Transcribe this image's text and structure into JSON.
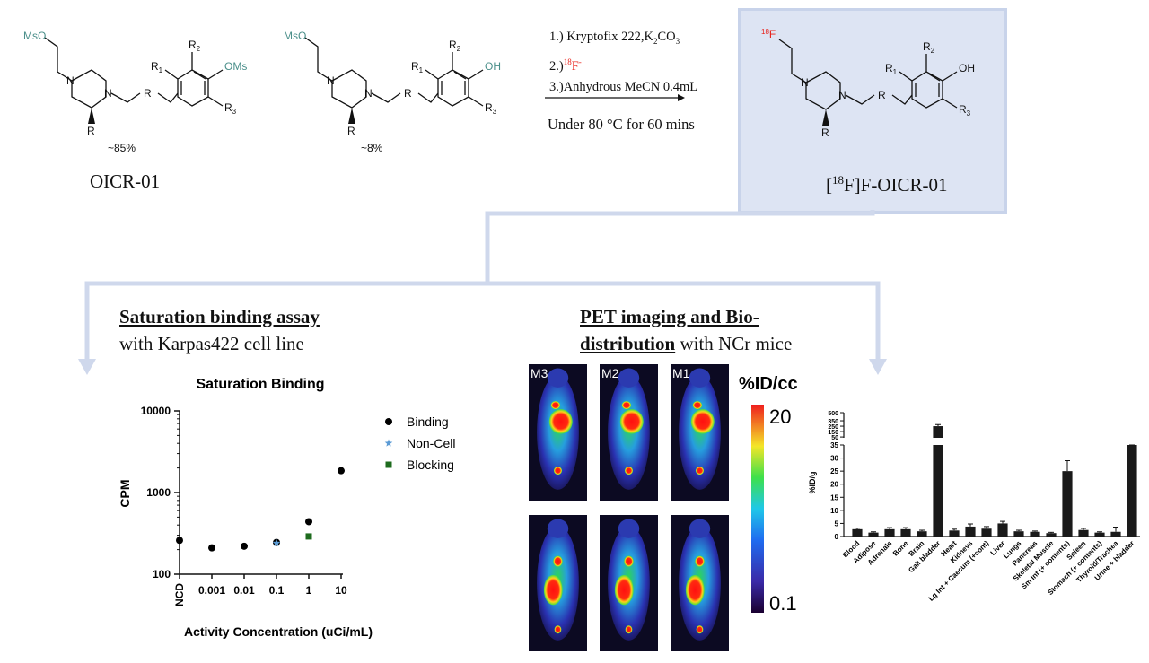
{
  "colors": {
    "highlight_box": "#dde4f3",
    "highlight_border": "#c8d3ea",
    "connector": "#cfd8ec",
    "mesyl_teal": "#4a8f8a",
    "fluorine_red": "#e8211a",
    "binding": "#000000",
    "noncell": "#5b9bd5",
    "blocking": "#1e6b1e"
  },
  "chemistry": {
    "precursor": {
      "ms_group": "MsO",
      "oms_group": "OMs",
      "r1": "R",
      "r1_sub": "1",
      "r2": "R",
      "r2_sub": "2",
      "r3": "R",
      "r3_sub": "3",
      "r_linker": "R",
      "r_ring": "R",
      "n1": "N",
      "n2": "N",
      "yield": "~85%",
      "name": "OICR-01"
    },
    "byproduct": {
      "ms_group": "MsO",
      "oh_group": "OH",
      "r1": "R",
      "r1_sub": "1",
      "r2": "R",
      "r2_sub": "2",
      "r3": "R",
      "r3_sub": "3",
      "r_linker": "R",
      "r_ring": "R",
      "n1": "N",
      "n2": "N",
      "yield": "~8%"
    },
    "conditions": {
      "step1_prefix": "1.) Kryptofix 222,K",
      "step1_sub1": "2",
      "step1_mid": "CO",
      "step1_sub2": "3",
      "step2_prefix": "2.)",
      "step2_mass": "18",
      "step2_elem": "F",
      "step2_charge": "-",
      "step3": "3.)Anhydrous MeCN 0.4mL",
      "temp": "Under 80 °C for 60 mins"
    },
    "product": {
      "mass": "18",
      "f_label": "F",
      "oh_group": "OH",
      "r1": "R",
      "r1_sub": "1",
      "r2": "R",
      "r2_sub": "2",
      "r3": "R",
      "r3_sub": "3",
      "r_linker": "R",
      "r_ring": "R",
      "n1": "N",
      "n2": "N",
      "name_open": "[",
      "name_mass": "18",
      "name_rest": "F]F-OICR-01"
    }
  },
  "saturation": {
    "heading_underlined": "Saturation binding assay",
    "heading_rest": "with Karpas422 cell line"
  },
  "pet": {
    "heading_line1": "PET imaging and Bio-",
    "heading_line2_underlined": "distribution",
    "heading_line2_rest": " with NCr mice",
    "mouse_labels": [
      "M3",
      "M2",
      "M1"
    ],
    "colorbar_title": "%ID/cc",
    "colorbar_max": "20",
    "colorbar_min": "0.1"
  },
  "chart_data": [
    {
      "type": "scatter",
      "title": "Saturation Binding",
      "xlabel": "Activity Concentration (uCi/mL)",
      "ylabel": "CPM",
      "x_tick_labels": [
        "NCD",
        "0.001",
        "0.01",
        "0.1",
        "1",
        "10"
      ],
      "y_tick_labels": [
        "10000",
        "1000",
        "100"
      ],
      "yscale": "log",
      "ylim": [
        100,
        10000
      ],
      "legend_position": "right",
      "series": [
        {
          "name": "Binding",
          "marker": "circle",
          "color": "#000000",
          "points": [
            {
              "x": "NCD",
              "y": 260
            },
            {
              "x": "0.001",
              "y": 210
            },
            {
              "x": "0.01",
              "y": 220
            },
            {
              "x": "0.1",
              "y": 245
            },
            {
              "x": "1",
              "y": 440
            },
            {
              "x": "10",
              "y": 1850
            }
          ]
        },
        {
          "name": "Non-Cell",
          "marker": "star",
          "color": "#5b9bd5",
          "points": [
            {
              "x": "0.1",
              "y": 240
            }
          ]
        },
        {
          "name": "Blocking",
          "marker": "square",
          "color": "#1e6b1e",
          "points": [
            {
              "x": "1",
              "y": 290
            }
          ]
        }
      ]
    },
    {
      "type": "bar",
      "title": "",
      "ylabel": "%ID/g",
      "y_tick_labels_lower": [
        "0",
        "5",
        "10",
        "15",
        "20",
        "25",
        "30",
        "35"
      ],
      "y_tick_labels_upper": [
        "50",
        "150",
        "250",
        "350",
        "500"
      ],
      "yscale": "broken",
      "ylim_lower": [
        0,
        35
      ],
      "ylim_upper": [
        35,
        500
      ],
      "categories": [
        "Blood",
        "Adipose",
        "Adrenals",
        "Bone",
        "Brain",
        "Gall bladder",
        "Heart",
        "Kidneys",
        "Lg Int + Caecum (+cont)",
        "Liver",
        "Lungs",
        "Pancreas",
        "Skeletal Muscle",
        "Sm Int (+ contents)",
        "Spleen",
        "Stomach (+ contents)",
        "Thyroid/Trachea",
        "Urine + bladder"
      ],
      "values": [
        2.8,
        1.5,
        2.8,
        2.8,
        2.0,
        250,
        2.3,
        3.8,
        3.0,
        5.0,
        2.0,
        1.8,
        1.3,
        25,
        2.5,
        1.5,
        1.8,
        35
      ],
      "errors": [
        0.4,
        0.3,
        0.6,
        0.6,
        0.4,
        30,
        0.5,
        1.0,
        0.8,
        0.8,
        0.4,
        0.3,
        0.3,
        4,
        0.6,
        0.3,
        1.8,
        20
      ]
    }
  ]
}
